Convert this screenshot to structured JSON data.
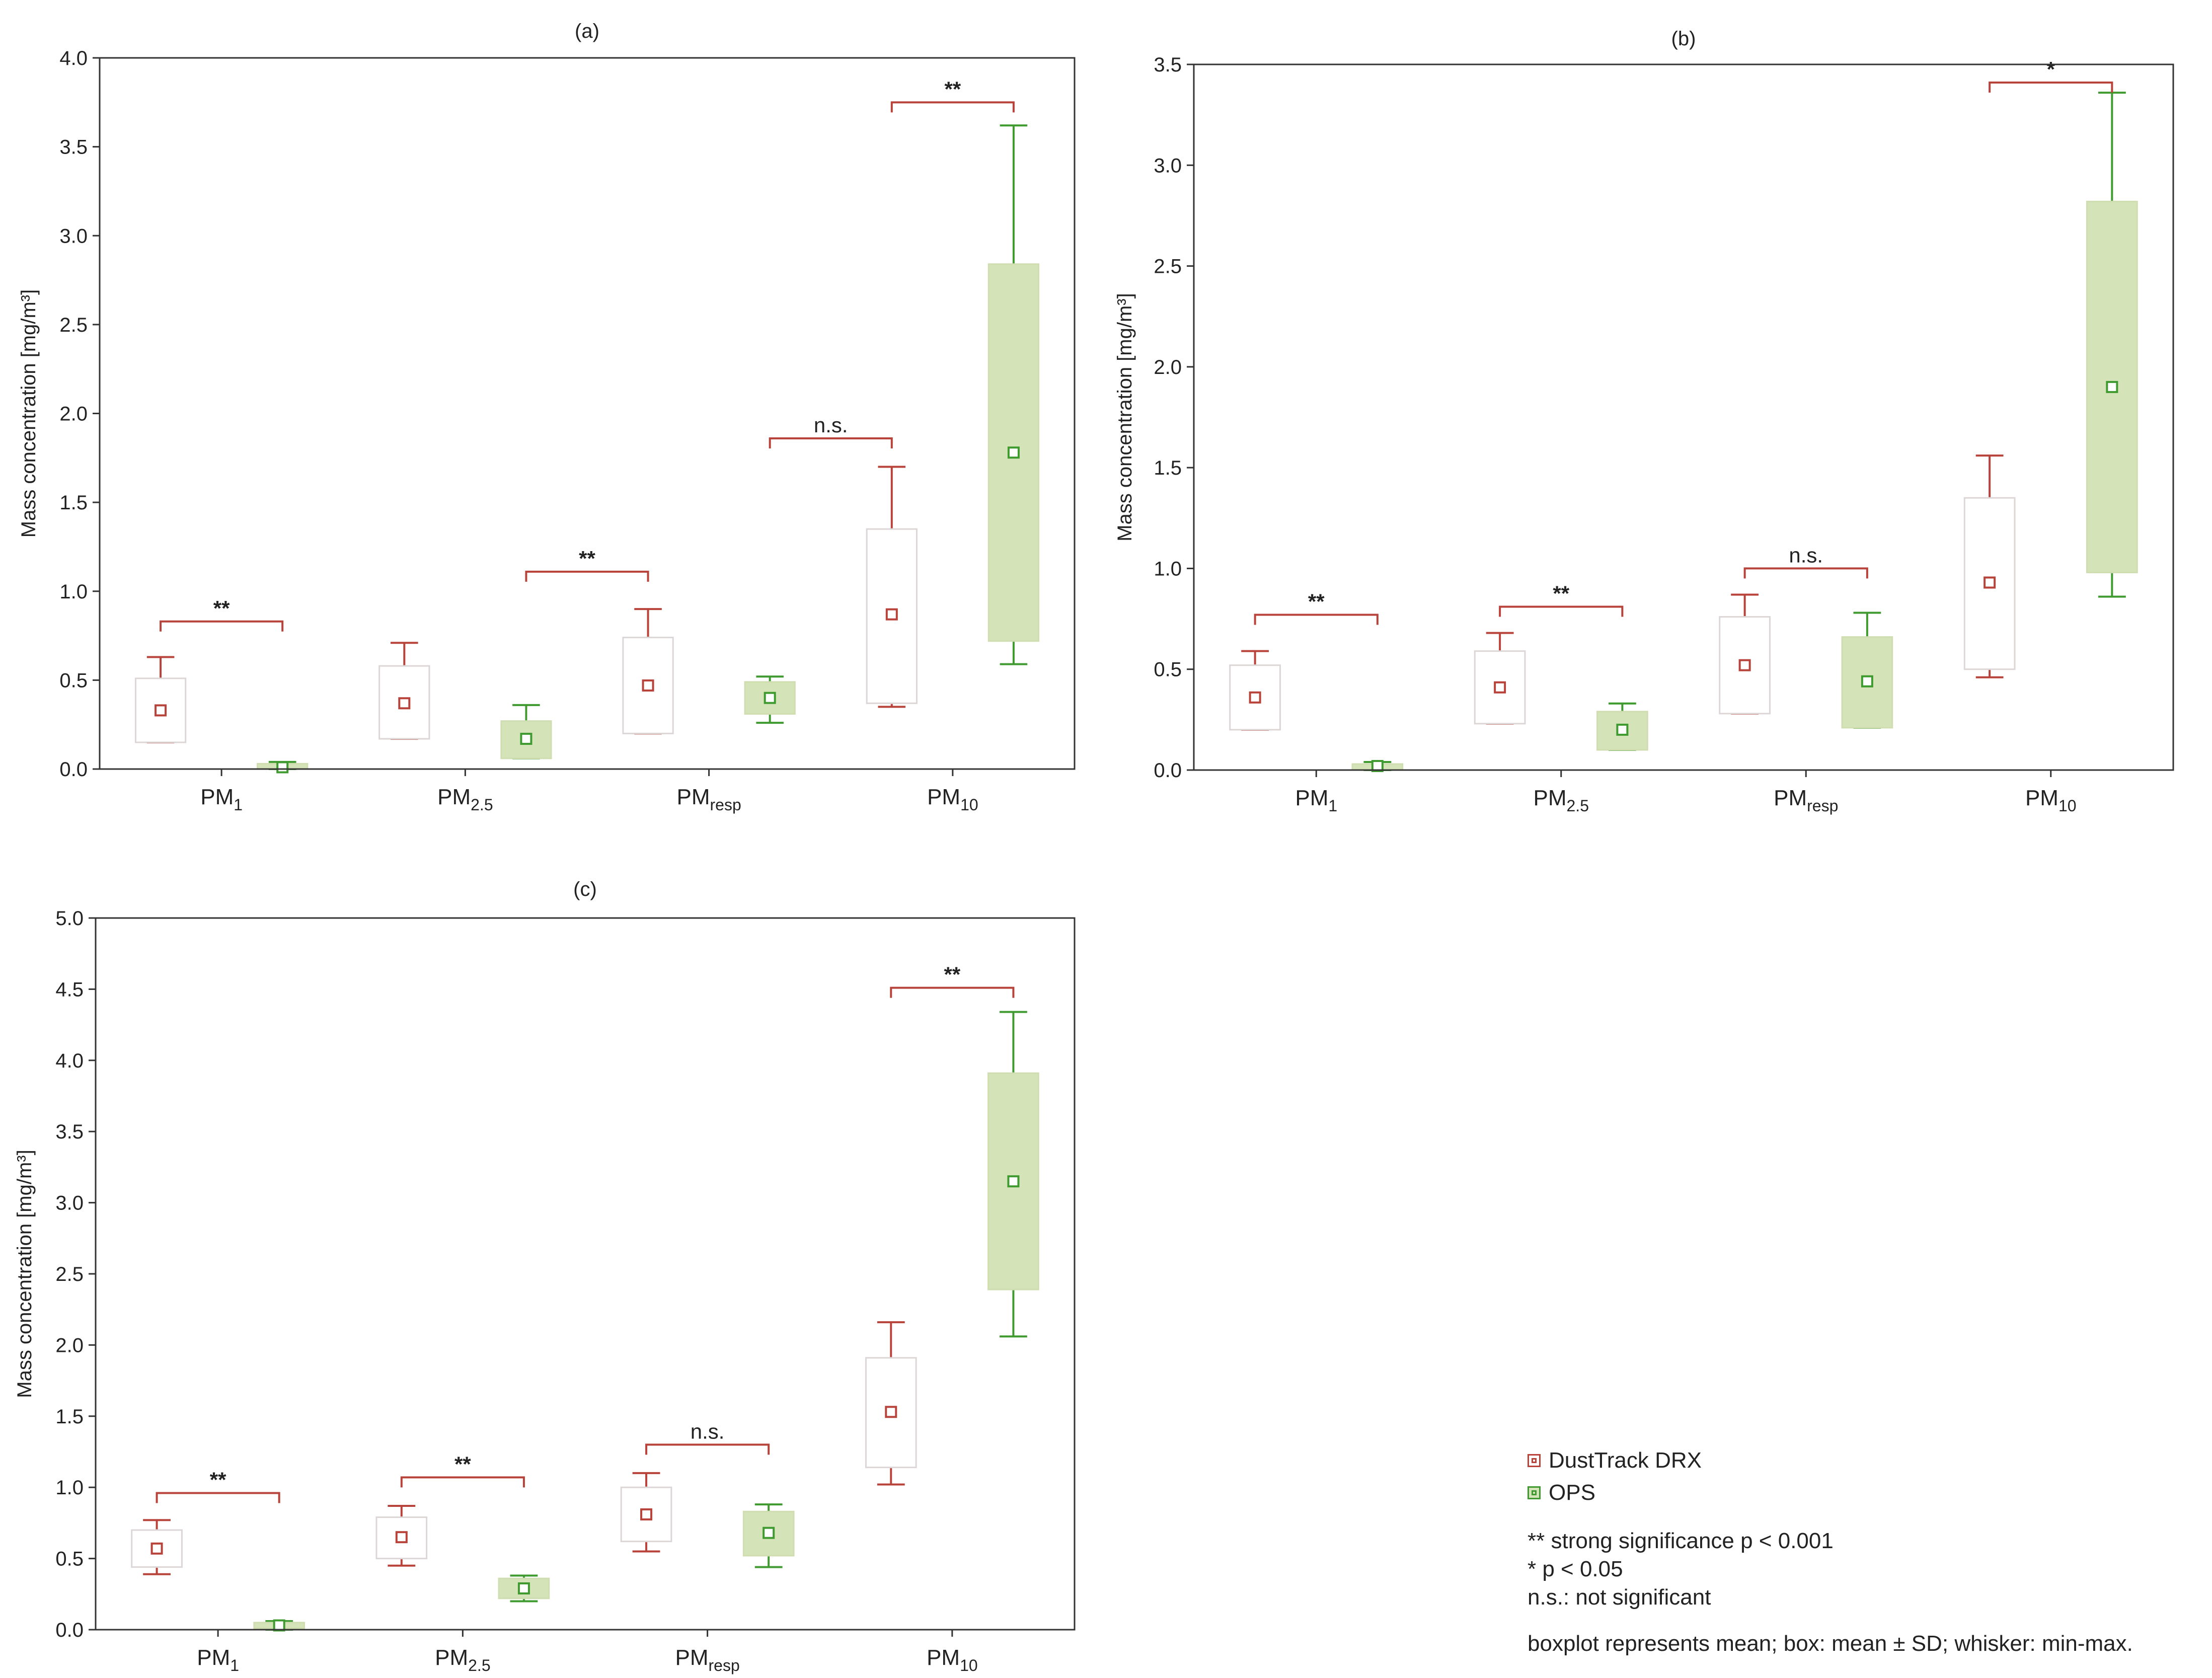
{
  "legend": {
    "series": [
      {
        "name": "DustTrack DRX",
        "color": "#b8433a",
        "fill": "#ffffff"
      },
      {
        "name": "OPS",
        "color": "#3f9a2f",
        "fill": "#d5e4b8"
      }
    ],
    "sig_strong": "** strong significance p < 0.001",
    "sig_weak": "* p < 0.05",
    "sig_ns": "n.s.: not significant",
    "boxplot_note": "boxplot represents mean; box: mean ± SD; whisker: min-max."
  },
  "chart_data": [
    {
      "type": "box",
      "title": "(a)",
      "ylabel": "Mass concentration [mg/m³]",
      "ylim": [
        0,
        4.0
      ],
      "yticks": [
        "0.0",
        "0.5",
        "1.0",
        "1.5",
        "2.0",
        "2.5",
        "3.0",
        "3.5",
        "4.0"
      ],
      "categories": [
        "PM1",
        "PM2.5",
        "PMresp",
        "PM10"
      ],
      "category_labels": [
        {
          "main": "PM",
          "sub": "1"
        },
        {
          "main": "PM",
          "sub": "2.5"
        },
        {
          "main": "PM",
          "sub": "resp"
        },
        {
          "main": "PM",
          "sub": "10"
        }
      ],
      "series": [
        {
          "name": "DustTrack DRX",
          "mean": [
            0.33,
            0.37,
            0.47,
            0.87
          ],
          "box_low": [
            0.15,
            0.17,
            0.2,
            0.37
          ],
          "box_high": [
            0.51,
            0.58,
            0.74,
            1.35
          ],
          "min": [
            0.15,
            0.17,
            0.2,
            0.35
          ],
          "max": [
            0.63,
            0.71,
            0.9,
            1.7
          ]
        },
        {
          "name": "OPS",
          "mean": [
            0.01,
            0.17,
            0.4,
            1.78
          ],
          "box_low": [
            0.0,
            0.06,
            0.31,
            0.72
          ],
          "box_high": [
            0.03,
            0.27,
            0.49,
            2.84
          ],
          "min": [
            0.0,
            0.06,
            0.26,
            0.59
          ],
          "max": [
            0.04,
            0.36,
            0.52,
            3.62
          ]
        }
      ],
      "significance": [
        {
          "label": "**",
          "from": [
            0,
            0
          ],
          "to": [
            0,
            1
          ],
          "y": 0.83
        },
        {
          "label": "**",
          "from": [
            1,
            1
          ],
          "to": [
            2,
            0
          ],
          "y": 1.11
        },
        {
          "label": "n.s.",
          "from": [
            2,
            1
          ],
          "to": [
            3,
            0
          ],
          "y": 1.86
        },
        {
          "label": "**",
          "from": [
            3,
            0
          ],
          "to": [
            3,
            1
          ],
          "y": 3.75
        }
      ]
    },
    {
      "type": "box",
      "title": "(b)",
      "ylabel": "Mass concentration [mg/m³]",
      "ylim": [
        0,
        3.5
      ],
      "yticks": [
        "0.0",
        "0.5",
        "1.0",
        "1.5",
        "2.0",
        "2.5",
        "3.0",
        "3.5"
      ],
      "categories": [
        "PM1",
        "PM2.5",
        "PMresp",
        "PM10"
      ],
      "category_labels": [
        {
          "main": "PM",
          "sub": "1"
        },
        {
          "main": "PM",
          "sub": "2.5"
        },
        {
          "main": "PM",
          "sub": "resp"
        },
        {
          "main": "PM",
          "sub": "10"
        }
      ],
      "series": [
        {
          "name": "DustTrack DRX",
          "mean": [
            0.36,
            0.41,
            0.52,
            0.93
          ],
          "box_low": [
            0.2,
            0.23,
            0.28,
            0.5
          ],
          "box_high": [
            0.52,
            0.59,
            0.76,
            1.35
          ],
          "min": [
            0.2,
            0.23,
            0.28,
            0.46
          ],
          "max": [
            0.59,
            0.68,
            0.87,
            1.56
          ]
        },
        {
          "name": "OPS",
          "mean": [
            0.02,
            0.2,
            0.44,
            1.9
          ],
          "box_low": [
            0.0,
            0.1,
            0.21,
            0.98
          ],
          "box_high": [
            0.03,
            0.29,
            0.66,
            2.82
          ],
          "min": [
            0.0,
            0.1,
            0.21,
            0.86
          ],
          "max": [
            0.04,
            0.33,
            0.78,
            3.36
          ]
        }
      ],
      "significance": [
        {
          "label": "**",
          "from": [
            0,
            0
          ],
          "to": [
            0,
            1
          ],
          "y": 0.77
        },
        {
          "label": "**",
          "from": [
            1,
            0
          ],
          "to": [
            1,
            1
          ],
          "y": 0.81
        },
        {
          "label": "n.s.",
          "from": [
            2,
            0
          ],
          "to": [
            2,
            1
          ],
          "y": 1.0
        },
        {
          "label": "*",
          "from": [
            3,
            0
          ],
          "to": [
            3,
            1
          ],
          "y": 3.41
        }
      ]
    },
    {
      "type": "box",
      "title": "(c)",
      "ylabel": "Mass concentration [mg/m³]",
      "ylim": [
        0,
        5.0
      ],
      "yticks": [
        "0.0",
        "0.5",
        "1.0",
        "1.5",
        "2.0",
        "2.5",
        "3.0",
        "3.5",
        "4.0",
        "4.5",
        "5.0"
      ],
      "categories": [
        "PM1",
        "PM2.5",
        "PMresp",
        "PM10"
      ],
      "category_labels": [
        {
          "main": "PM",
          "sub": "1"
        },
        {
          "main": "PM",
          "sub": "2.5"
        },
        {
          "main": "PM",
          "sub": "resp"
        },
        {
          "main": "PM",
          "sub": "10"
        }
      ],
      "series": [
        {
          "name": "DustTrack DRX",
          "mean": [
            0.57,
            0.65,
            0.81,
            1.53
          ],
          "box_low": [
            0.44,
            0.5,
            0.62,
            1.14
          ],
          "box_high": [
            0.7,
            0.79,
            1.0,
            1.91
          ],
          "min": [
            0.39,
            0.45,
            0.55,
            1.02
          ],
          "max": [
            0.77,
            0.87,
            1.1,
            2.16
          ]
        },
        {
          "name": "OPS",
          "mean": [
            0.03,
            0.29,
            0.68,
            3.15
          ],
          "box_low": [
            0.01,
            0.22,
            0.52,
            2.39
          ],
          "box_high": [
            0.05,
            0.36,
            0.83,
            3.91
          ],
          "min": [
            0.0,
            0.2,
            0.44,
            2.06
          ],
          "max": [
            0.06,
            0.38,
            0.88,
            4.34
          ]
        }
      ],
      "significance": [
        {
          "label": "**",
          "from": [
            0,
            0
          ],
          "to": [
            0,
            1
          ],
          "y": 0.96
        },
        {
          "label": "**",
          "from": [
            1,
            0
          ],
          "to": [
            1,
            1
          ],
          "y": 1.07
        },
        {
          "label": "n.s.",
          "from": [
            2,
            0
          ],
          "to": [
            2,
            1
          ],
          "y": 1.3
        },
        {
          "label": "**",
          "from": [
            3,
            0
          ],
          "to": [
            3,
            1
          ],
          "y": 4.51
        }
      ]
    }
  ]
}
